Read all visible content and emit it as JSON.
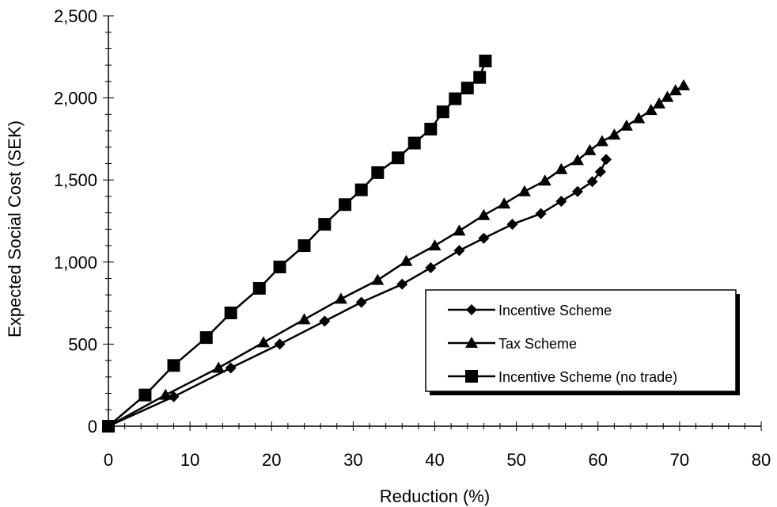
{
  "chart_data": {
    "type": "line",
    "xlabel": "Reduction (%)",
    "ylabel": "Expected Social Cost (SEK)",
    "xlim": [
      0,
      80
    ],
    "ylim": [
      0,
      2500
    ],
    "xticks": [
      0,
      10,
      20,
      30,
      40,
      50,
      60,
      70,
      80
    ],
    "yticks": [
      0,
      500,
      1000,
      1500,
      2000,
      2500
    ],
    "xtick_labels": [
      "0",
      "10",
      "20",
      "30",
      "40",
      "50",
      "60",
      "70",
      "80"
    ],
    "ytick_labels": [
      "0",
      "500",
      "1,000",
      "1,500",
      "2,000",
      "2,500"
    ],
    "grid": false,
    "legend_position": "lower-right",
    "series": [
      {
        "name": "Incentive Scheme",
        "marker": "diamond",
        "color": "#000000",
        "points": [
          [
            0,
            0
          ],
          [
            8,
            180
          ],
          [
            15,
            355
          ],
          [
            21,
            500
          ],
          [
            26.5,
            640
          ],
          [
            31,
            755
          ],
          [
            36,
            865
          ],
          [
            39.5,
            965
          ],
          [
            43,
            1070
          ],
          [
            46,
            1145
          ],
          [
            49.5,
            1230
          ],
          [
            53,
            1295
          ],
          [
            55.5,
            1370
          ],
          [
            57.5,
            1430
          ],
          [
            59.3,
            1490
          ],
          [
            60.3,
            1550
          ],
          [
            61,
            1625
          ]
        ]
      },
      {
        "name": "Tax Scheme",
        "marker": "triangle",
        "color": "#000000",
        "points": [
          [
            0,
            0
          ],
          [
            7,
            190
          ],
          [
            13.5,
            355
          ],
          [
            19,
            510
          ],
          [
            24,
            650
          ],
          [
            28.5,
            775
          ],
          [
            33,
            890
          ],
          [
            36.5,
            1005
          ],
          [
            40,
            1100
          ],
          [
            43,
            1190
          ],
          [
            46,
            1285
          ],
          [
            48.5,
            1355
          ],
          [
            51,
            1430
          ],
          [
            53.5,
            1495
          ],
          [
            55.5,
            1565
          ],
          [
            57.5,
            1620
          ],
          [
            59,
            1680
          ],
          [
            60.5,
            1735
          ],
          [
            62,
            1775
          ],
          [
            63.5,
            1830
          ],
          [
            65,
            1875
          ],
          [
            66.5,
            1925
          ],
          [
            67.5,
            1965
          ],
          [
            68.5,
            2005
          ],
          [
            69.5,
            2045
          ],
          [
            70.5,
            2075
          ]
        ]
      },
      {
        "name": "Incentive Scheme (no trade)",
        "marker": "square",
        "color": "#000000",
        "points": [
          [
            0,
            0
          ],
          [
            4.5,
            190
          ],
          [
            8,
            370
          ],
          [
            12,
            540
          ],
          [
            15,
            690
          ],
          [
            18.5,
            840
          ],
          [
            21,
            970
          ],
          [
            24,
            1100
          ],
          [
            26.5,
            1230
          ],
          [
            29,
            1350
          ],
          [
            31,
            1440
          ],
          [
            33,
            1545
          ],
          [
            35.5,
            1635
          ],
          [
            37.5,
            1725
          ],
          [
            39.5,
            1810
          ],
          [
            41,
            1915
          ],
          [
            42.5,
            1995
          ],
          [
            44,
            2060
          ],
          [
            45.5,
            2125
          ],
          [
            46.2,
            2225
          ]
        ]
      }
    ]
  }
}
